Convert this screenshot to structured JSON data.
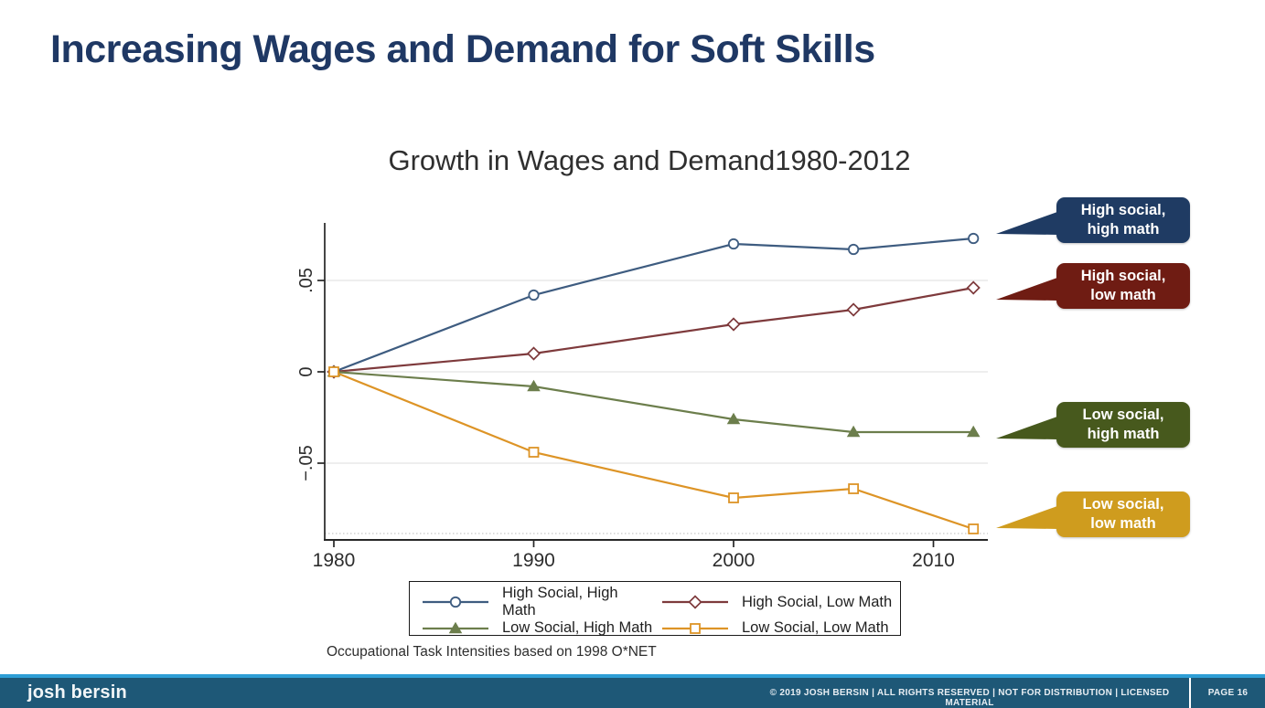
{
  "slide": {
    "title": "Increasing Wages and Demand for Soft Skills"
  },
  "chart": {
    "title": "Growth in Wages and Demand1980-2012",
    "note": "Occupational Task Intensities based on 1998 O*NET"
  },
  "chart_data": {
    "type": "line",
    "title": "Growth in Wages and Demand1980-2012",
    "xlabel": "",
    "ylabel": "",
    "x": [
      1980,
      1990,
      2000,
      2006,
      2012
    ],
    "series": [
      {
        "name": "High Social, High Math",
        "marker": "circle",
        "color": "#3e5c80",
        "values": [
          0,
          0.042,
          0.07,
          0.067,
          0.073
        ]
      },
      {
        "name": "High Social, Low Math",
        "marker": "diamond",
        "color": "#7e3a3c",
        "values": [
          0,
          0.01,
          0.026,
          0.034,
          0.046
        ]
      },
      {
        "name": "Low Social, High Math",
        "marker": "triangle",
        "color": "#6c7e4c",
        "values": [
          0,
          -0.008,
          -0.026,
          -0.033,
          -0.033
        ]
      },
      {
        "name": "Low Social, Low Math",
        "marker": "square",
        "color": "#dd9426",
        "values": [
          0,
          -0.044,
          -0.069,
          -0.064,
          -0.086
        ]
      }
    ],
    "x_ticks": [
      {
        "v": 1980,
        "label": "1980"
      },
      {
        "v": 1990,
        "label": "1990"
      },
      {
        "v": 2000,
        "label": "2000"
      },
      {
        "v": 2010,
        "label": "2010"
      }
    ],
    "y_ticks": [
      {
        "v": 0.05,
        "label": ".05"
      },
      {
        "v": 0,
        "label": "0"
      },
      {
        "v": -0.05,
        "label": "−.05"
      }
    ],
    "ylim": [
      -0.092,
      0.081
    ],
    "xlim": [
      1979.5,
      2013
    ],
    "grid": true,
    "legend_position": "bottom"
  },
  "callouts": [
    {
      "line1": "High social,",
      "line2": "high math",
      "color": "#1f3b63"
    },
    {
      "line1": "High social,",
      "line2": "low math",
      "color": "#6f1c13"
    },
    {
      "line1": "Low social,",
      "line2": "high math",
      "color": "#47591d"
    },
    {
      "line1": "Low social,",
      "line2": "low math",
      "color": "#cf9c1e"
    }
  ],
  "footer": {
    "brand": "josh bersin",
    "copyright": "© 2019 JOSH BERSIN | ALL RIGHTS RESERVED | NOT FOR DISTRIBUTION | LICENSED MATERIAL",
    "page_label": "PAGE 16"
  }
}
